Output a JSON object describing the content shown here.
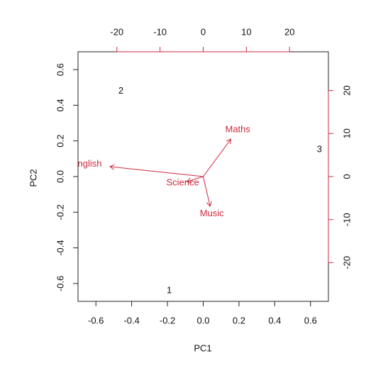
{
  "chart_data": {
    "type": "biplot",
    "x_label": "PC1",
    "y_label": "PC2",
    "points": {
      "labels": [
        "1",
        "2",
        "3"
      ],
      "x": [
        -0.19,
        -0.46,
        0.65
      ],
      "y": [
        -0.64,
        0.48,
        0.15
      ]
    },
    "variables": {
      "names": [
        "English",
        "Maths",
        "Science",
        "Music"
      ],
      "x": [
        -21.6,
        6.4,
        -3.8,
        1.6
      ],
      "y": [
        2.3,
        8.7,
        -1.2,
        -6.9
      ],
      "color": "#cc2a3c"
    },
    "xlim": [
      -0.7,
      0.7
    ],
    "ylim": [
      -0.7,
      0.7
    ],
    "xticks": [
      -0.6,
      -0.4,
      -0.2,
      {
        "value": 0,
        "label": "0.0"
      },
      0.2,
      0.4,
      0.6
    ],
    "yticks": [
      -0.6,
      -0.4,
      -0.2,
      {
        "value": 0,
        "label": "0.0"
      },
      0.2,
      0.4,
      0.6
    ],
    "x2lim": [
      -29,
      29
    ],
    "x2ticks": [
      -20,
      -10,
      0,
      10,
      20
    ],
    "y2lim": [
      -29,
      29
    ],
    "y2ticks": [
      -20,
      -10,
      0,
      10,
      20
    ]
  }
}
